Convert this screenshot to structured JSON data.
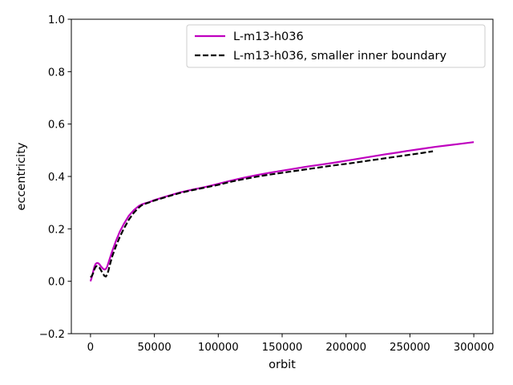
{
  "chart_data": {
    "type": "line",
    "xlabel": "orbit",
    "ylabel": "eccentricity",
    "xlim": [
      -15000,
      315000
    ],
    "ylim": [
      -0.2,
      1.0
    ],
    "xticks": [
      0,
      50000,
      100000,
      150000,
      200000,
      250000,
      300000
    ],
    "xtick_labels": [
      "0",
      "50000",
      "100000",
      "150000",
      "200000",
      "250000",
      "300000"
    ],
    "yticks": [
      -0.2,
      0.0,
      0.2,
      0.4,
      0.6,
      0.8,
      1.0
    ],
    "ytick_labels": [
      "−0.2",
      "0.0",
      "0.2",
      "0.4",
      "0.6",
      "0.8",
      "1.0"
    ],
    "legend_position": "top-right",
    "grid": false,
    "series": [
      {
        "name": "L-m13-h036",
        "color": "#bf00bf",
        "style": "solid",
        "x": [
          0,
          1000,
          2000,
          3000,
          4000,
          5000,
          6000,
          7000,
          8000,
          9000,
          10000,
          11000,
          12000,
          13000,
          14000,
          15000,
          17000,
          20000,
          23000,
          26000,
          30000,
          34000,
          38000,
          40000,
          43000,
          46000,
          50000,
          60000,
          70000,
          80000,
          90000,
          100000,
          110000,
          120000,
          130000,
          140000,
          150000,
          160000,
          170000,
          180000,
          190000,
          200000,
          210000,
          220000,
          230000,
          240000,
          250000,
          260000,
          270000,
          280000,
          290000,
          300000
        ],
        "y": [
          0.0,
          0.015,
          0.035,
          0.055,
          0.066,
          0.07,
          0.069,
          0.065,
          0.058,
          0.052,
          0.047,
          0.045,
          0.047,
          0.055,
          0.07,
          0.085,
          0.115,
          0.155,
          0.19,
          0.218,
          0.25,
          0.272,
          0.288,
          0.293,
          0.298,
          0.302,
          0.31,
          0.325,
          0.339,
          0.35,
          0.36,
          0.372,
          0.384,
          0.395,
          0.405,
          0.414,
          0.422,
          0.43,
          0.438,
          0.445,
          0.452,
          0.46,
          0.468,
          0.476,
          0.484,
          0.491,
          0.499,
          0.506,
          0.513,
          0.519,
          0.525,
          0.531
        ]
      },
      {
        "name": "L-m13-h036, smaller inner boundary",
        "color": "#000000",
        "style": "dashed",
        "x": [
          0,
          1000,
          2000,
          3000,
          4000,
          5000,
          6000,
          7000,
          8000,
          9000,
          10000,
          11000,
          12000,
          13000,
          14000,
          15000,
          17000,
          20000,
          23000,
          26000,
          30000,
          34000,
          38000,
          40000,
          43000,
          46000,
          50000,
          60000,
          70000,
          80000,
          90000,
          100000,
          110000,
          120000,
          130000,
          140000,
          150000,
          160000,
          170000,
          180000,
          190000,
          200000,
          210000,
          220000,
          230000,
          240000,
          250000,
          260000,
          268000
        ],
        "y": [
          0.015,
          0.02,
          0.03,
          0.045,
          0.055,
          0.058,
          0.057,
          0.052,
          0.044,
          0.035,
          0.027,
          0.02,
          0.018,
          0.025,
          0.04,
          0.06,
          0.095,
          0.135,
          0.17,
          0.2,
          0.235,
          0.262,
          0.282,
          0.29,
          0.296,
          0.301,
          0.308,
          0.323,
          0.337,
          0.348,
          0.358,
          0.368,
          0.38,
          0.39,
          0.399,
          0.407,
          0.414,
          0.421,
          0.428,
          0.435,
          0.442,
          0.448,
          0.455,
          0.462,
          0.469,
          0.476,
          0.483,
          0.49,
          0.496
        ]
      }
    ]
  }
}
